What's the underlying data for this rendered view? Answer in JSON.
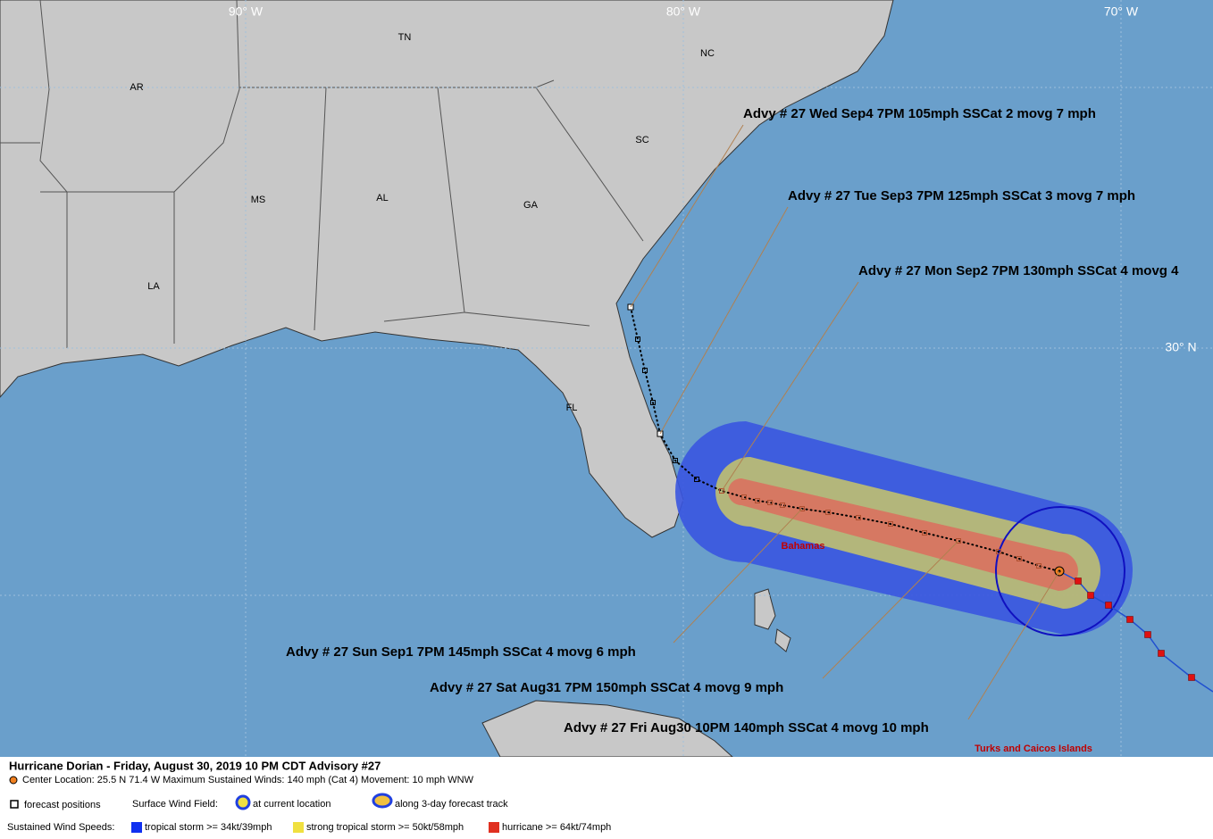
{
  "map": {
    "longitude_labels": [
      "90° W",
      "80° W",
      "70° W"
    ],
    "latitude_labels": [
      "30° N"
    ],
    "states": [
      "AR",
      "TN",
      "NC",
      "SC",
      "MS",
      "AL",
      "GA",
      "LA",
      "FL"
    ],
    "places": [
      "Bahamas",
      "Turks and Caicos Islands"
    ],
    "advisories": [
      "Advy # 27 Wed Sep4 7PM  105mph SSCat 2 movg 7 mph",
      "Advy # 27 Tue Sep3 7PM  125mph SSCat 3 movg 7 mph",
      "Advy # 27 Mon Sep2 7PM  130mph SSCat 4 movg 4",
      "Advy # 27 Sun Sep1 7PM  145mph SSCat 4 movg 6 mph",
      "Advy # 27 Sat Aug31 7PM  150mph SSCat 4 movg 9 mph",
      "Advy # 27 Fri Aug30 10PM  140mph SSCat 4 movg 10 mph"
    ]
  },
  "legend": {
    "title": "Hurricane Dorian  -  Friday, August 30, 2019  10 PM CDT   Advisory #27",
    "center": "Center Location: 25.5 N  71.4 W   Maximum Sustained Winds: 140 mph (Cat 4) Movement: 10 mph WNW",
    "forecast_positions": "forecast positions",
    "surface_wind_field": "Surface Wind Field:",
    "at_current": "at current location",
    "along_track": "along 3-day forecast track",
    "speeds_label": "Sustained Wind Speeds:",
    "tropical_storm": "tropical storm >= 34kt/39mph",
    "strong_tropical_storm": "strong tropical storm >= 50kt/58mph",
    "hurricane": "hurricane >= 64kt/74mph"
  }
}
